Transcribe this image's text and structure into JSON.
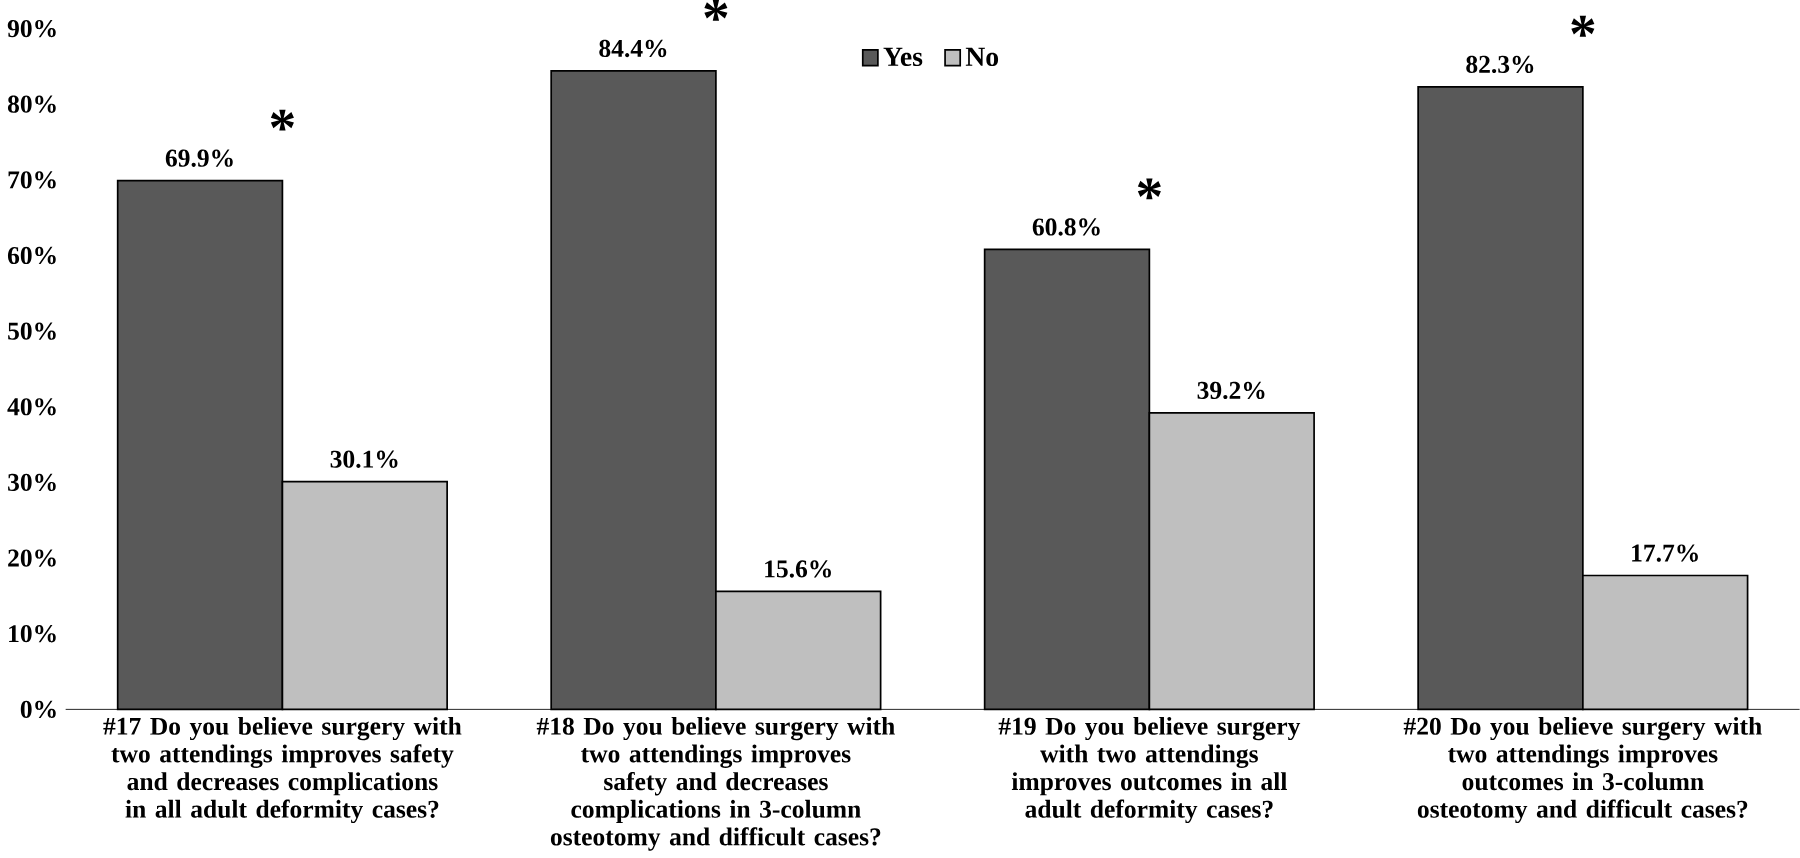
{
  "chart_data": {
    "type": "bar",
    "categories": [
      "#17 Do you believe surgery with two attendings improves safety and decreases complications in all adult deformity cases?",
      "#18 Do you believe surgery with two attendings improves safety and decreases complications in 3-column osteotomy and difficult cases?",
      "#19 Do you believe surgery with two attendings improves outcomes in all adult deformity cases?",
      "#20 Do you believe surgery with two attendings improves outcomes in 3-column osteotomy and difficult cases?"
    ],
    "series": [
      {
        "name": "Yes",
        "color": "#595959",
        "values": [
          69.9,
          84.4,
          60.8,
          82.3
        ],
        "value_labels": [
          "69.9%",
          "84.4%",
          "60.8%",
          "82.3%"
        ]
      },
      {
        "name": "No",
        "color": "#bfbfbf",
        "values": [
          30.1,
          15.6,
          39.2,
          17.7
        ],
        "value_labels": [
          "30.1%",
          "15.6%",
          "39.2%",
          "17.7%"
        ]
      }
    ],
    "ylim": [
      0,
      90
    ],
    "yticks": [
      {
        "value": 0,
        "label": "0%"
      },
      {
        "value": 10,
        "label": "10%"
      },
      {
        "value": 20,
        "label": "20%"
      },
      {
        "value": 30,
        "label": "30%"
      },
      {
        "value": 40,
        "label": "40%"
      },
      {
        "value": 50,
        "label": "50%"
      },
      {
        "value": 60,
        "label": "60%"
      },
      {
        "value": 70,
        "label": "70%"
      },
      {
        "value": 80,
        "label": "80%"
      },
      {
        "value": 90,
        "label": "90%"
      }
    ],
    "annotations": [
      "*",
      "*",
      "*",
      "*"
    ],
    "grid": false,
    "legend": "top"
  }
}
